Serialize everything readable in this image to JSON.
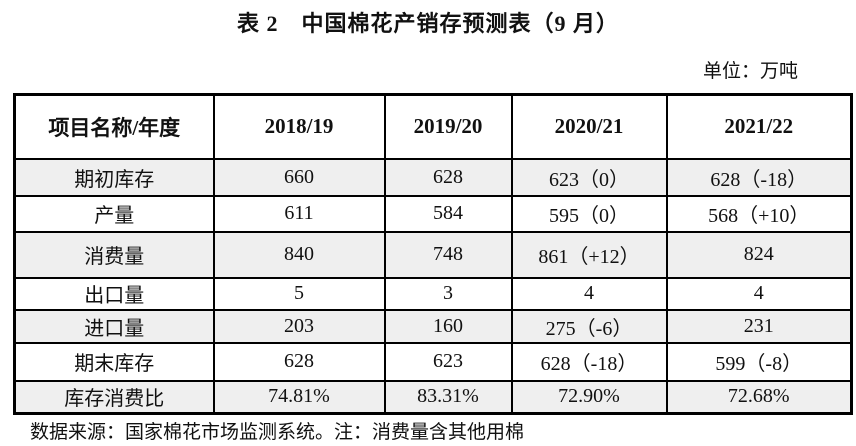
{
  "title": "表 2　中国棉花产销存预测表（9 月）",
  "unit_label": "单位：万吨",
  "table": {
    "header": [
      "项目名称/年度",
      "2018/19",
      "2019/20",
      "2020/21",
      "2021/22"
    ],
    "rows": [
      {
        "label": "期初库存",
        "values": [
          "660",
          "628",
          "623（0）",
          "628（-18）"
        ]
      },
      {
        "label": "产量",
        "values": [
          "611",
          "584",
          "595（0）",
          "568（+10）"
        ]
      },
      {
        "label": "消费量",
        "values": [
          "840",
          "748",
          "861（+12）",
          "824"
        ]
      },
      {
        "label": "出口量",
        "values": [
          "5",
          "3",
          "4",
          "4"
        ]
      },
      {
        "label": "进口量",
        "values": [
          "203",
          "160",
          "275（-6）",
          "231"
        ]
      },
      {
        "label": "期末库存",
        "values": [
          "628",
          "623",
          "628（-18）",
          "599（-8）"
        ]
      },
      {
        "label": "库存消费比",
        "values": [
          "74.81%",
          "83.31%",
          "72.90%",
          "72.68%"
        ]
      }
    ]
  },
  "footnote": "数据来源：国家棉花市场监测系统。注：消费量含其他用棉",
  "colors": {
    "row_stripe": "#efefef",
    "border": "#000000",
    "background": "#ffffff"
  },
  "chart_data": {
    "type": "table",
    "title": "表 2　中国棉花产销存预测表（9 月）",
    "unit": "万吨",
    "columns": [
      "项目名称/年度",
      "2018/19",
      "2019/20",
      "2020/21",
      "2021/22"
    ],
    "rows": [
      [
        "期初库存",
        "660",
        "628",
        "623（0）",
        "628（-18）"
      ],
      [
        "产量",
        "611",
        "584",
        "595（0）",
        "568（+10）"
      ],
      [
        "消费量",
        "840",
        "748",
        "861（+12）",
        "824"
      ],
      [
        "出口量",
        "5",
        "3",
        "4",
        "4"
      ],
      [
        "进口量",
        "203",
        "160",
        "275（-6）",
        "231"
      ],
      [
        "期末库存",
        "628",
        "623",
        "628（-18）",
        "599（-8）"
      ],
      [
        "库存消费比",
        "74.81%",
        "83.31%",
        "72.90%",
        "72.68%"
      ]
    ]
  }
}
